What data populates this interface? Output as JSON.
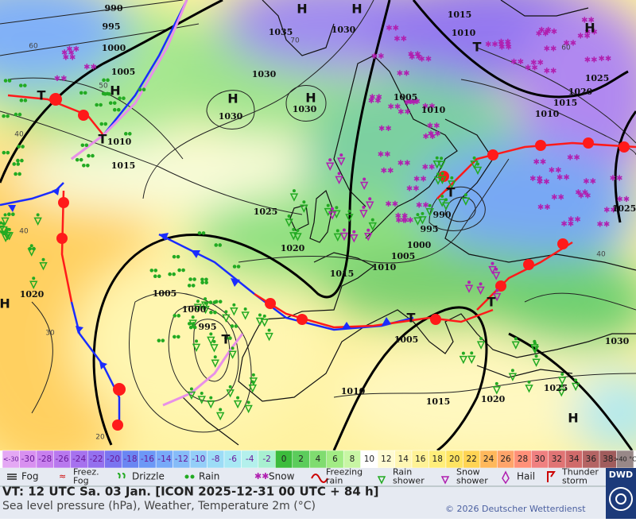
{
  "map": {
    "pressure_labels": [
      "990",
      "995",
      "1000",
      "1005",
      "1010",
      "1015",
      "1035",
      "1030",
      "1030",
      "1030",
      "1030",
      "1015",
      "1010",
      "1025",
      "1020",
      "1015",
      "1010",
      "1005",
      "1010",
      "1025",
      "1020",
      "1015",
      "1010",
      "1005",
      "1000",
      "995",
      "990",
      "1025",
      "1020",
      "1005",
      "1000",
      "995",
      "1005",
      "1010",
      "1015",
      "1020",
      "1025",
      "1030"
    ],
    "high_centers": [
      "H",
      "H",
      "H",
      "H",
      "H",
      "H",
      "H",
      "H"
    ],
    "low_centers": [
      "T",
      "T",
      "T",
      "T",
      "T",
      "T",
      "T"
    ],
    "temperature_labels": [
      "60",
      "70",
      "60",
      "50",
      "40",
      "40",
      "30",
      "20",
      "40"
    ]
  },
  "color_scale": {
    "labels": [
      "<-30",
      "-30",
      "-28",
      "-26",
      "-24",
      "-22",
      "-20",
      "-18",
      "-16",
      "-14",
      "-12",
      "-10",
      "-8",
      "-6",
      "-4",
      "-2",
      "0",
      "2",
      "4",
      "6",
      "8",
      "10",
      "12",
      "14",
      "16",
      "18",
      "20",
      "22",
      "24",
      "26",
      "28",
      "30",
      "32",
      "34",
      "36",
      "38",
      ">40 °C"
    ],
    "colors": [
      "#e4a8f4",
      "#d890f0",
      "#c880ee",
      "#b878ee",
      "#a672ee",
      "#9470ee",
      "#7a74f0",
      "#6a86f2",
      "#6c98f6",
      "#78aaf8",
      "#86bcf8",
      "#94cef8",
      "#9cdcf6",
      "#a8e8f4",
      "#b4f0ec",
      "#a8f0d0",
      "#3cbc3c",
      "#5ccc5c",
      "#80dc70",
      "#a2ec84",
      "#c8f6a4",
      "#ffffff",
      "#fffbd2",
      "#fff6b4",
      "#fff296",
      "#ffee7a",
      "#ffe462",
      "#ffd454",
      "#ffb85c",
      "#ffa46a",
      "#ff9078",
      "#f08080",
      "#e07474",
      "#d06a6a",
      "#b46464",
      "#a05c5c",
      "#988888"
    ]
  },
  "weather_legend": [
    {
      "label": [
        "Fog"
      ]
    },
    {
      "label": [
        "Freez.",
        "Fog"
      ]
    },
    {
      "label": [
        "Drizzle"
      ]
    },
    {
      "label": [
        "Rain"
      ]
    },
    {
      "label": [
        "Snow"
      ]
    },
    {
      "label": [
        "Freezing",
        "rain"
      ]
    },
    {
      "label": [
        "Rain",
        "shower"
      ]
    },
    {
      "label": [
        "Snow",
        "shower"
      ]
    },
    {
      "label": [
        "Hail"
      ]
    },
    {
      "label": [
        "Thunder",
        "storm"
      ]
    }
  ],
  "footer": {
    "valid_time": "VT: 12 UTC Sa.  03 Jan. [ICON 2025-12-31  00 UTC + 84 h]",
    "description": "Sea level pressure (hPa), Weather, Temperature 2m (°C)",
    "copyright": "© 2026 Deutscher Wetterdienst",
    "logo": "DWD"
  }
}
